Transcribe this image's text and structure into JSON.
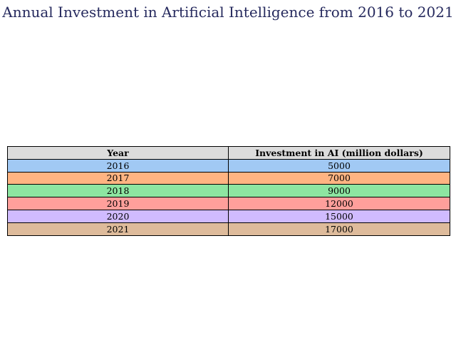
{
  "chart_data": {
    "type": "table",
    "title": "Annual Investment in Artificial Intelligence from 2016 to 2021",
    "columns": [
      "Year",
      "Investment in AI (million dollars)"
    ],
    "header_color": "#dcdcdc",
    "rows": [
      {
        "year": "2016",
        "value": "5000",
        "color": "#a1c9f4"
      },
      {
        "year": "2017",
        "value": "7000",
        "color": "#ffb482"
      },
      {
        "year": "2018",
        "value": "9000",
        "color": "#8de5a1"
      },
      {
        "year": "2019",
        "value": "12000",
        "color": "#ff9f9b"
      },
      {
        "year": "2020",
        "value": "15000",
        "color": "#d0bbff"
      },
      {
        "year": "2021",
        "value": "17000",
        "color": "#debb9b"
      }
    ]
  }
}
